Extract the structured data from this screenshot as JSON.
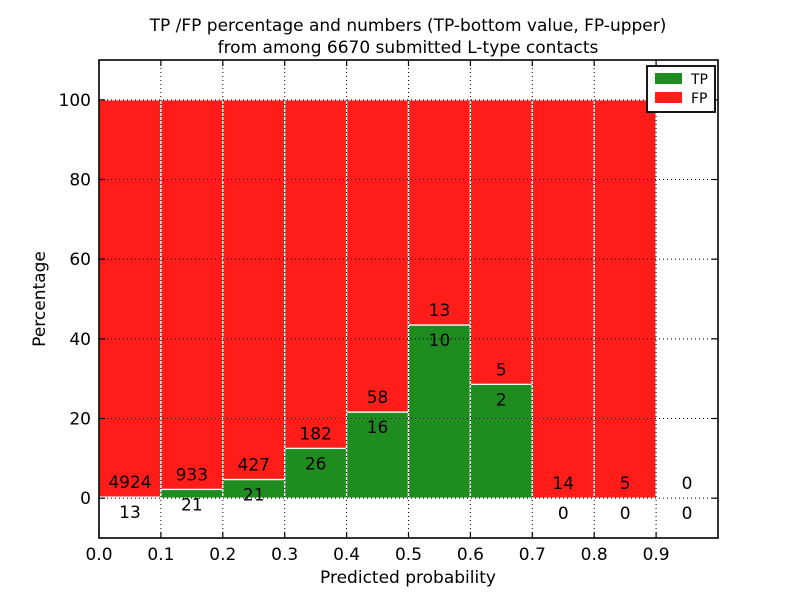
{
  "title": {
    "line1": "TP /FP percentage and numbers (TP-bottom value, FP-upper)",
    "line2": "from among 6670 submitted L-type contacts"
  },
  "axes": {
    "xlabel": "Predicted probability",
    "ylabel": "Percentage"
  },
  "legend": {
    "position": "upper right",
    "items": [
      {
        "label": "TP",
        "color": "#1e8c1e"
      },
      {
        "label": "FP",
        "color": "#fe1d18"
      }
    ]
  },
  "chart_data": {
    "type": "bar",
    "stacked": true,
    "title": "TP /FP percentage and numbers (TP-bottom value, FP-upper)\nfrom among 6670 submitted L-type contacts",
    "xlabel": "Predicted probability",
    "ylabel": "Percentage",
    "total_submitted_contacts": 6670,
    "xlim": [
      0.0,
      1.0
    ],
    "ylim": [
      -10,
      110
    ],
    "bin_width": 0.1,
    "bin_starts": [
      0.0,
      0.1,
      0.2,
      0.3,
      0.4,
      0.5,
      0.6,
      0.7,
      0.8,
      0.9
    ],
    "xtick_values": [
      0.0,
      0.1,
      0.2,
      0.3,
      0.4,
      0.5,
      0.6,
      0.7,
      0.8,
      0.9
    ],
    "xtick_labels": [
      "0.0",
      "0.1",
      "0.2",
      "0.3",
      "0.4",
      "0.5",
      "0.6",
      "0.7",
      "0.8",
      "0.9"
    ],
    "ytick_values": [
      0,
      20,
      40,
      60,
      80,
      100
    ],
    "ytick_labels": [
      "0",
      "20",
      "40",
      "60",
      "80",
      "100"
    ],
    "grid": true,
    "grid_style": "dotted",
    "legend_position": "upper right",
    "bar_edge_color": "#ffffff",
    "series": [
      {
        "name": "TP",
        "color": "#1e8c1e",
        "counts": [
          13,
          21,
          21,
          26,
          16,
          10,
          2,
          0,
          0,
          0
        ],
        "pct_of_bin": [
          0.26,
          2.2,
          4.69,
          12.5,
          21.62,
          43.48,
          28.57,
          0.0,
          0.0,
          null
        ]
      },
      {
        "name": "FP",
        "color": "#fe1d18",
        "counts": [
          4924,
          933,
          427,
          182,
          58,
          13,
          5,
          14,
          5,
          0
        ],
        "pct_of_bin": [
          99.74,
          97.8,
          95.31,
          87.5,
          78.38,
          56.52,
          71.43,
          100.0,
          100.0,
          null
        ]
      }
    ]
  }
}
